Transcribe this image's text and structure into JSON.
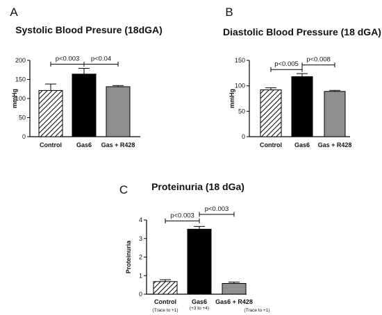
{
  "chart_data": [
    {
      "type": "bar",
      "panel": "A",
      "title": "Systolic Blood Presure (18dGA)",
      "ylabel": "mmHg",
      "ylim": [
        0,
        200
      ],
      "yticks": [
        0,
        50,
        100,
        150,
        200
      ],
      "categories": [
        "Control",
        "Gas6",
        "Gas + R428"
      ],
      "values": [
        121,
        164,
        131
      ],
      "errors": [
        17,
        15,
        3
      ],
      "annotations": [
        {
          "from": 0,
          "to": 1,
          "label": "p<0.003",
          "y": 190
        },
        {
          "from": 1,
          "to": 2,
          "label": "p<0.04",
          "y": 190
        }
      ]
    },
    {
      "type": "bar",
      "panel": "B",
      "title": "Diastolic Blood Pressure (18 dGA)",
      "ylabel": "mmHg",
      "ylim": [
        0,
        150
      ],
      "yticks": [
        0,
        50,
        100,
        150
      ],
      "categories": [
        "Control",
        "Gas6",
        "Gas + R428"
      ],
      "values": [
        92,
        118,
        89
      ],
      "errors": [
        4,
        6,
        2
      ],
      "annotations": [
        {
          "from": 0,
          "to": 1,
          "label": "p<0.005",
          "y": 132
        },
        {
          "from": 1,
          "to": 2,
          "label": "p<0.008",
          "y": 141
        }
      ]
    },
    {
      "type": "bar",
      "panel": "C",
      "title": "Proteinuria (18 dGa)",
      "ylabel": "Proteinuria",
      "ylim": [
        0,
        4
      ],
      "yticks": [
        0,
        1,
        2,
        3,
        4
      ],
      "categories": [
        "Control",
        "Gas6",
        "Gas6 + R428"
      ],
      "subnotes": [
        "(Trace to +1)",
        "(+3 to +4)",
        "(Trace to +1)"
      ],
      "values": [
        0.68,
        3.5,
        0.58
      ],
      "errors": [
        0.1,
        0.15,
        0.07
      ],
      "annotations": [
        {
          "from": 0,
          "to": 1,
          "label": "p<0.003",
          "y": 3.95
        },
        {
          "from": 1,
          "to": 2,
          "label": "p<0.003",
          "y": 4.3
        }
      ]
    }
  ],
  "colors": {
    "bar_fills": [
      "hatch",
      "#000000",
      "#8f8f8f"
    ],
    "axis": "#000000"
  }
}
